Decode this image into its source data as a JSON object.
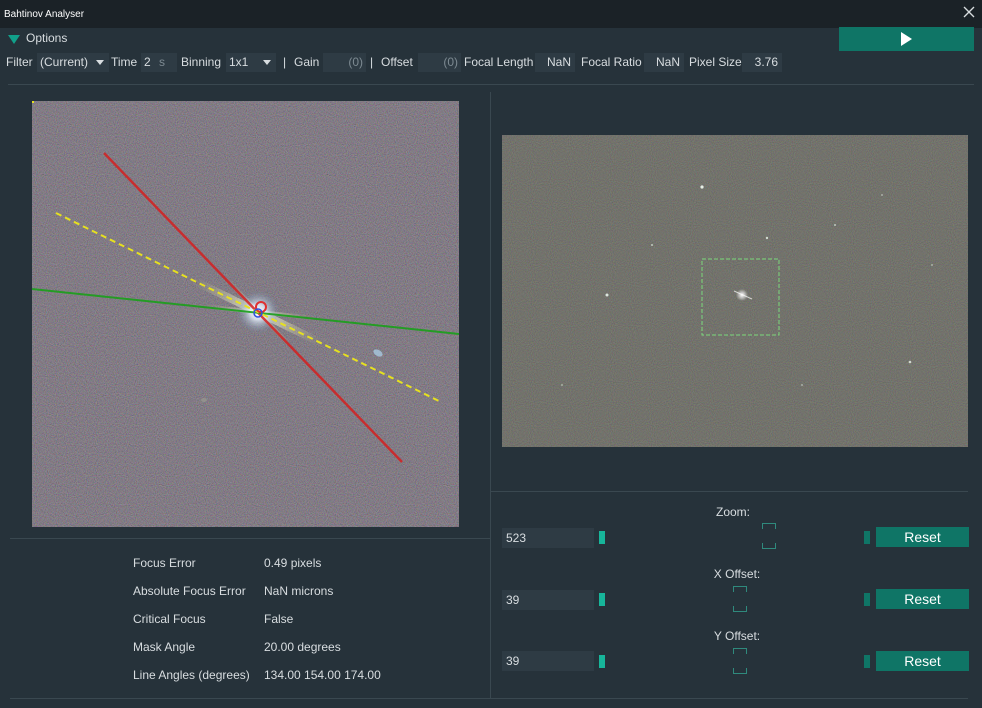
{
  "window": {
    "title": "Bahtinov Analyser"
  },
  "options": {
    "label": "Options"
  },
  "toolbar": {
    "filter_label": "Filter",
    "filter_value": "(Current)",
    "time_label": "Time",
    "time_value": "2",
    "time_unit": "s",
    "binning_label": "Binning",
    "binning_value": "1x1",
    "sep1": "|",
    "gain_label": "Gain",
    "gain_value": "(0)",
    "sep2": "|",
    "offset_label": "Offset",
    "offset_value": "(0)",
    "focal_length_label": "Focal Length",
    "focal_length_value": "NaN",
    "focal_ratio_label": "Focal Ratio",
    "focal_ratio_value": "NaN",
    "pixel_size_label": "Pixel Size",
    "pixel_size_value": "3.76"
  },
  "stats": {
    "rows": [
      {
        "label": "Focus Error",
        "value": "0.49 pixels"
      },
      {
        "label": "Absolute Focus Error",
        "value": "NaN microns"
      },
      {
        "label": "Critical Focus",
        "value": "False"
      },
      {
        "label": "Mask Angle",
        "value": "20.00 degrees"
      },
      {
        "label": "Line Angles (degrees)",
        "value": "134.00 154.00 174.00"
      }
    ]
  },
  "controls": {
    "zoom": {
      "label": "Zoom:",
      "value": "523",
      "reset": "Reset"
    },
    "x_offset": {
      "label": "X Offset:",
      "value": "39",
      "reset": "Reset"
    },
    "y_offset": {
      "label": "Y Offset:",
      "value": "39",
      "reset": "Reset"
    }
  },
  "colors": {
    "accent": "#0f7566",
    "accent_bright": "#17b59a",
    "background": "#26323a",
    "field": "#2e3b44"
  }
}
